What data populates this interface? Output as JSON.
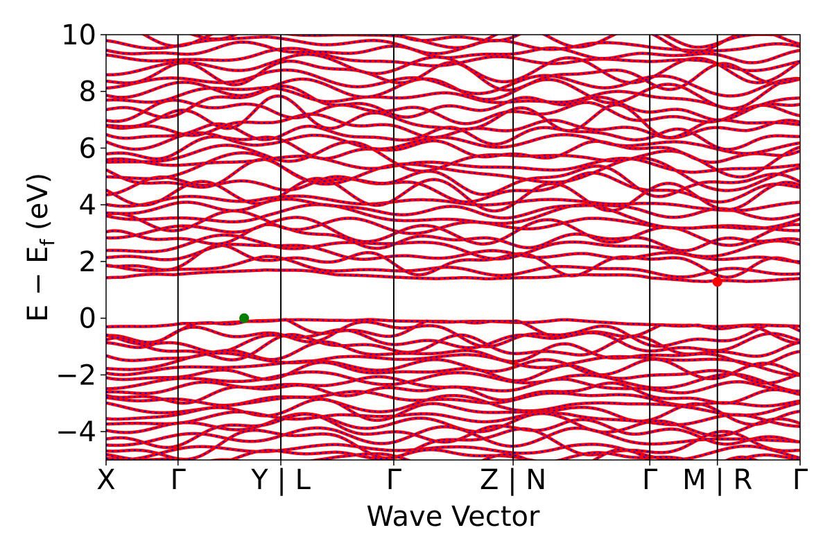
{
  "chart_data": {
    "type": "line",
    "title": "",
    "xlabel": "Wave Vector",
    "ylabel_main": "E − E",
    "ylabel_sub": "f",
    "ylabel_unit": " (eV)",
    "ylim": [
      -5,
      10
    ],
    "yticks": [
      {
        "value": -4,
        "label": "−4"
      },
      {
        "value": -2,
        "label": "−2"
      },
      {
        "value": 0,
        "label": "0"
      },
      {
        "value": 2,
        "label": "2"
      },
      {
        "value": 4,
        "label": "4"
      },
      {
        "value": 6,
        "label": "6"
      },
      {
        "value": 8,
        "label": "8"
      },
      {
        "value": 10,
        "label": "10"
      }
    ],
    "xlim": [
      0,
      9.65
    ],
    "kpoints": [
      {
        "position": 0.0,
        "label": "X",
        "divider": false
      },
      {
        "position": 1.0,
        "label": "Γ",
        "divider": true
      },
      {
        "position": 2.43,
        "label": "Y | L",
        "divider": true
      },
      {
        "position": 4.0,
        "label": "Γ",
        "divider": true
      },
      {
        "position": 5.66,
        "label": "Z | N",
        "divider": true
      },
      {
        "position": 7.56,
        "label": "Γ",
        "divider": true
      },
      {
        "position": 8.5,
        "label": "M | R",
        "divider": true
      },
      {
        "position": 9.65,
        "label": "Γ",
        "divider": false
      }
    ],
    "series": [
      {
        "color": "#ff0000",
        "style": "solid"
      },
      {
        "color": "#0000ff",
        "style": "dotted"
      }
    ],
    "valence_band_maximum": {
      "x": 1.92,
      "y": 0.0,
      "color": "#008000"
    },
    "conduction_band_minimum": {
      "x": 8.5,
      "y": 1.28,
      "color": "#ff0000"
    },
    "bands": {
      "valence_top": [
        -0.28,
        -0.2,
        -0.15,
        -0.05,
        0.0,
        -0.08,
        -0.12,
        -0.1,
        -0.05,
        -0.2,
        -0.25,
        -0.22,
        -0.28
      ],
      "valence_count": 24,
      "valence_bottom": -5.0,
      "conduction_bottom": [
        1.42,
        1.5,
        1.62,
        1.7,
        1.55,
        1.48,
        1.4,
        1.38,
        1.42,
        1.5,
        1.45,
        1.3,
        1.28,
        1.4
      ],
      "conduction_count": 34,
      "conduction_top": 10.0
    }
  }
}
